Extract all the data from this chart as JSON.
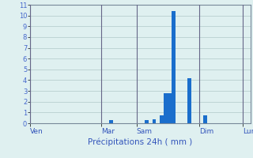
{
  "bar_color": "#1a6ecc",
  "bg_color": "#dff0f0",
  "grid_color": "#b0c8c8",
  "axis_label_color": "#3355bb",
  "tick_label_color": "#4466cc",
  "spine_color": "#778899",
  "vline_color": "#666688",
  "ylim": [
    0,
    11
  ],
  "yticks": [
    0,
    1,
    2,
    3,
    4,
    5,
    6,
    7,
    8,
    9,
    10,
    11
  ],
  "num_bars": 56,
  "bar_values": [
    0,
    0,
    0,
    0,
    0,
    0,
    0,
    0,
    0,
    0,
    0,
    0,
    0,
    0,
    0,
    0,
    0,
    0,
    0,
    0,
    0.3,
    0,
    0,
    0,
    0,
    0,
    0,
    0,
    0,
    0.3,
    0,
    0.35,
    0,
    0.7,
    2.8,
    2.8,
    10.4,
    0,
    0,
    0,
    4.2,
    0,
    0,
    0,
    0.7,
    0,
    0,
    0,
    0,
    0,
    0,
    0,
    0,
    0,
    0,
    0
  ],
  "day_labels": [
    "Ven",
    "Mar",
    "Sam",
    "Dim",
    "Lun"
  ],
  "day_positions": [
    0,
    18,
    27,
    43,
    54
  ],
  "xlabel": "Précipitations 24h ( mm )"
}
